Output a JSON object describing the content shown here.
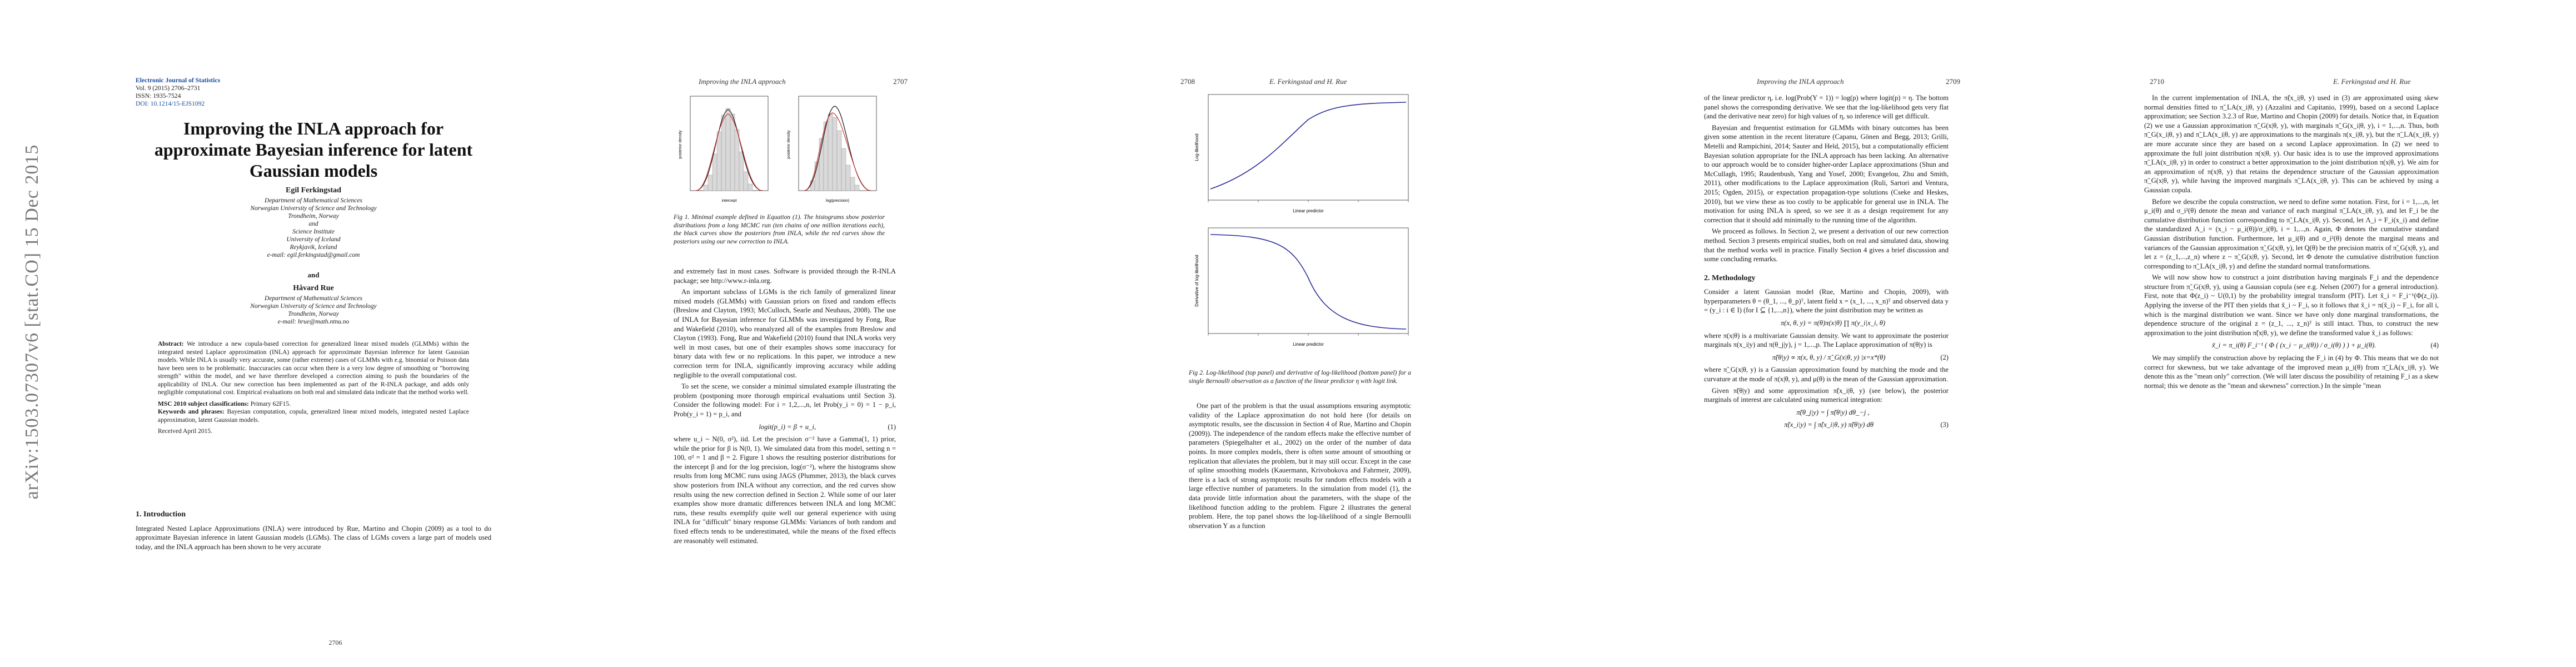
{
  "arxiv_stamp": "arXiv:1503.07307v6  [stat.CO]  15 Dec 2015",
  "page1": {
    "journal": [
      "Electronic Journal of Statistics",
      "Vol. 9 (2015) 2706–2731",
      "ISSN: 1935-7524",
      "DOI: 10.1214/15-EJS1092"
    ],
    "title": "Improving the INLA approach for approximate Bayesian inference for latent Gaussian models",
    "author1_name": "Egil Ferkingstad",
    "author1_affil": [
      "Department of Mathematical Sciences",
      "Norwegian University of Science and Technology",
      "Trondheim, Norway",
      "and",
      "Science Institute",
      "University of Iceland",
      "Reykjavik, Iceland",
      "e-mail: egil.ferkingstad@gmail.com"
    ],
    "and": "and",
    "author2_name": "Håvard Rue",
    "author2_affil": [
      "Department of Mathematical Sciences",
      "Norwegian University of Science and Technology",
      "Trondheim, Norway",
      "e-mail: hrue@math.ntnu.no"
    ],
    "abstract_label": "Abstract:",
    "abstract": "We introduce a new copula-based correction for generalized linear mixed models (GLMMs) within the integrated nested Laplace approximation (INLA) approach for approximate Bayesian inference for latent Gaussian models. While INLA is usually very accurate, some (rather extreme) cases of GLMMs with e.g. binomial or Poisson data have been seen to be problematic. Inaccuracies can occur when there is a very low degree of smoothing or \"borrowing strength\" within the model, and we have therefore developed a correction aiming to push the boundaries of the applicability of INLA. Our new correction has been implemented as part of the R-INLA package, and adds only negligible computational cost. Empirical evaluations on both real and simulated data indicate that the method works well.",
    "msc_label": "MSC 2010 subject classifications:",
    "msc": "Primary 62F15.",
    "kw_label": "Keywords and phrases:",
    "keywords": "Bayesian computation, copula, generalized linear mixed models, integrated nested Laplace approximation, latent Gaussian models.",
    "received": "Received April 2015.",
    "section": "1. Introduction",
    "intro": "Integrated Nested Laplace Approximations (INLA) were introduced by Rue, Martino and Chopin (2009) as a tool to do approximate Bayesian inference in latent Gaussian models (LGMs). The class of LGMs covers a large part of models used today, and the INLA approach has been shown to be very accurate",
    "pagenum": "2706"
  },
  "page2": {
    "running_head": "Improving the INLA approach",
    "pagenum": "2707",
    "fig1_caption": "Fig 1. Minimal example defined in Equation (1). The histograms show posterior distributions from a long MCMC run (ten chains of one million iterations each), the black curves show the posteriors from INLA, while the red curves show the posteriors using our new correction to INLA.",
    "fig1_xlabels": [
      "intercept",
      "log(precision)"
    ],
    "fig1_ylabel": "posterior density",
    "text_paragraphs": [
      "and extremely fast in most cases. Software is provided through the R-INLA package; see http://www.r-inla.org.",
      "An important subclass of LGMs is the rich family of generalized linear mixed models (GLMMs) with Gaussian priors on fixed and random effects (Breslow and Clayton, 1993; McCulloch, Searle and Neuhaus, 2008). The use of INLA for Bayesian inference for GLMMs was investigated by Fong, Rue and Wakefield (2010), who reanalyzed all of the examples from Breslow and Clayton (1993). Fong, Rue and Wakefield (2010) found that INLA works very well in most cases, but one of their examples shows some inaccuracy for binary data with few or no replications. In this paper, we introduce a new correction term for INLA, significantly improving accuracy while adding negligible to the overall computational cost.",
      "To set the scene, we consider a minimal simulated example illustrating the problem (postponing more thorough empirical evaluations until Section 3). Consider the following model: For i = 1,2,...,n, let Prob(y_i = 0) = 1 − p_i, Prob(y_i = 1) = p_i, and"
    ],
    "equation1": "logit(p_i) = β + u_i,",
    "eq1_num": "(1)",
    "text_after": [
      "where u_i ~ N(0, σ²), iid. Let the precision σ⁻² have a Gamma(1, 1) prior, while the prior for β is N(0, 1). We simulated data from this model, setting n = 100, σ² = 1 and β = 2. Figure 1 shows the resulting posterior distributions for the intercept β and for the log precision, log(σ⁻²), where the histograms show results from long MCMC runs using JAGS (Plummer, 2013), the black curves show posteriors from INLA without any correction, and the red curves show results using the new correction defined in Section 2. While some of our later examples show more dramatic differences between INLA and long MCMC runs, these results exemplify quite well our general experience with using INLA for \"difficult\" binary response GLMMs: Variances of both random and fixed effects tends to be underestimated, while the means of the fixed effects are reasonably well estimated."
    ]
  },
  "page3": {
    "pagenum": "2708",
    "running_head": "E. Ferkingstad and H. Rue",
    "top_plot": {
      "xlabel": "Linear predictor",
      "ylabel": "Log-likelihood"
    },
    "bottom_plot": {
      "xlabel": "Linear predictor",
      "ylabel": "Derivative of log-likelihood"
    },
    "fig2_caption": "Fig 2. Log-likelihood (top panel) and derivative of log-likelihood (bottom panel) for a single Bernoulli observation as a function of the linear predictor η with logit link.",
    "text": "One part of the problem is that the usual assumptions ensuring asymptotic validity of the Laplace approximation do not hold here (for details on asymptotic results, see the discussion in Section 4 of Rue, Martino and Chopin (2009)). The independence of the random effects make the effective number of parameters (Spiegelhalter et al., 2002) on the order of the number of data points. In more complex models, there is often some amount of smoothing or replication that alleviates the problem, but it may still occur. Except in the case of spline smoothing models (Kauermann, Krivobokova and Fahrmeir, 2009), there is a lack of strong asymptotic results for random effects models with a large effective number of parameters. In the simulation from model (1), the data provide little information about the parameters, with the shape of the likelihood function adding to the problem. Figure 2 illustrates the general problem. Here, the top panel shows the log-likelihood of a single Bernoulli observation Y as a function"
  },
  "page4": {
    "running_head": "Improving the INLA approach",
    "pagenum": "2709",
    "text_top": [
      "of the linear predictor η, i.e. log(Prob(Y = 1)) = log(p) where logit(p) = η. The bottom panel shows the corresponding derivative. We see that the log-likelihood gets very flat (and the derivative near zero) for high values of η, so inference will get difficult.",
      "Bayesian and frequentist estimation for GLMMs with binary outcomes has been given some attention in the recent literature (Capanu, Gönen and Begg, 2013; Grilli, Metelli and Rampichini, 2014; Sauter and Held, 2015), but a computationally efficient Bayesian solution appropriate for the INLA approach has been lacking. An alternative to our approach would be to consider higher-order Laplace approximations (Shun and McCullagh, 1995; Raudenbush, Yang and Yosef, 2000; Evangelou, Zhu and Smith, 2011), other modifications to the Laplace approximation (Ruli, Sartori and Ventura, 2015; Ogden, 2015), or expectation propagation-type solutions (Cseke and Heskes, 2010), but we view these as too costly to be applicable for general use in INLA. The motivation for using INLA is speed, so we see it as a design requirement for any correction that it should add minimally to the running time of the algorithm.",
      "We proceed as follows. In Section 2, we present a derivation of our new correction method. Section 3 presents empirical studies, both on real and simulated data, showing that the method works well in practice. Finally Section 4 gives a brief discussion and some concluding remarks."
    ],
    "section": "2. Methodology",
    "text_method": "Consider a latent Gaussian model (Rue, Martino and Chopin, 2009), with hyperparameters θ = (θ_1, ..., θ_p)ᵀ, latent field x = (x_1, ..., x_n)ᵀ and observed data y = (y_i : i ∈ I) (for I ⊆ {1,...,n}), where the joint distribution may be written as",
    "eq_joint": "π(x, θ, y) = π(θ)π(x|θ) ∏ π(y_i|x_i, θ)",
    "text_2": "where π(x|θ) is a multivariate Gaussian density. We want to approximate the posterior marginals π(x_i|y) and π(θ_j|y), j = 1,...,p. The Laplace approximation of π(θ|y) is",
    "eq2": "π̃(θ|y) ∝ π(x, θ, y) / π̃_G(x|θ, y) |x=x*(θ)",
    "eq2_num": "(2)",
    "text_3": "where π̃_G(x|θ, y) is a Gaussian approximation found by matching the mode and the curvature at the mode of π(x|θ, y), and μ(θ) is the mean of the Gaussian approximation.",
    "text_4": "Given π̃(θ|y) and some approximation π̃(x_i|θ, y) (see below), the posterior marginals of interest are calculated using numerical integration:",
    "eq3a": "π̃(θ_j|y) = ∫ π̃(θ|y) dθ_−j ,",
    "eq3b": "π̃(x_i|y) = ∫ π̃(x_i|θ, y) π̃(θ|y) dθ",
    "eq3_num": "(3)"
  },
  "page5": {
    "pagenum": "2710",
    "running_head": "E. Ferkingstad and H. Rue",
    "text_paragraphs": [
      "In the current implementation of INLA, the π̃(x_i|θ, y) used in (3) are approximated using skew normal densities fitted to π̃_LA(x_i|θ, y) (Azzalini and Capitanio, 1999), based on a second Laplace approximation; see Section 3.2.3 of Rue, Martino and Chopin (2009) for details. Notice that, in Equation (2) we use a Gaussian approximation π̃_G(x|θ, y), with marginals π̃_G(x_i|θ, y), i = 1,...,n. Thus, both π̃_G(x_i|θ, y) and π̃_LA(x_i|θ, y) are approximations to the marginals π(x_i|θ, y), but the π̃_LA(x_i|θ, y) are more accurate since they are based on a second Laplace approximation. In (2) we need to approximate the full joint distribution π(x|θ, y). Our basic idea is to use the improved approximations π̃_LA(x_i|θ, y) in order to construct a better approximation to the joint distribution π(x|θ, y). We aim for an approximation of π(x|θ, y) that retains the dependence structure of the Gaussian approximation π̃_G(x|θ, y), while having the improved marginals π̃_LA(x_i|θ, y). This can be achieved by using a Gaussian copula.",
      "Before we describe the copula construction, we need to define some notation. First, for i = 1,...,n, let μ_i(θ) and σ_i²(θ) denote the mean and variance of each marginal π̃_LA(x_i|θ, y), and let F_i be the cumulative distribution function corresponding to π̃_LA(x_i|θ, y). Second, let Λ_i = F_i(x_i) and define the standardized Λ_i = (x_i − μ_i(θ))/σ_i(θ), i = 1,...,n. Again, Φ denotes the cumulative standard Gaussian distribution function. Furthermore, let μ_i(θ) and σ_i²(θ) denote the marginal means and variances of the Gaussian approximation π̃_G(x|θ, y), let Q(θ) be the precision matrix of π̃_G(x|θ, y), and let z = (z_1,...,z_n) where z ~ π̃_G(x|θ, y). Second, let Φ denote the cumulative distribution function corresponding to π̃_LA(x_i|θ, y) and define the standard normal transformations.",
      "We will now show how to construct a joint distribution having marginals F_i and the dependence structure from π̃_G(x|θ, y), using a Gaussian copula (see e.g. Nelsen (2007) for a general introduction). First, note that Φ(z_i) ~ U(0,1) by the probability integral transform (PIT). Let x̃_i = F_i⁻¹(Φ(z_i)). Applying the inverse of the PIT then yields that x̃_i ~ F_i, so it follows that x̃_i = π(x̃_i) ~ F_i, for all i, which is the marginal distribution we want. Since we have only done marginal transformations, the dependence structure of the original z = (z_1, ..., z_n)ᵀ is still intact. Thus, to construct the new approximation to the joint distribution π̃(x|θ, y), we define the transformed value x̃_i as follows:"
    ],
    "eq4": "x̃_i = π_i(θ) F_i⁻¹ ( Φ ( (x_i − μ_i(θ)) / σ_i(θ) ) ) + μ_i(θ).",
    "eq4_num": "(4)",
    "text_end": "We may simplify the construction above by replacing the F_i in (4) by Φ. This means that we do not correct for skewness, but we take advantage of the improved mean μ_i(θ) from π̃_LA(x_i|θ, y). We denote this as the \"mean only\" correction. (We will later discuss the possibility of retaining F_i as a skew normal; this we denote as the \"mean and skewness\" correction.) In the simple \"mean"
  }
}
